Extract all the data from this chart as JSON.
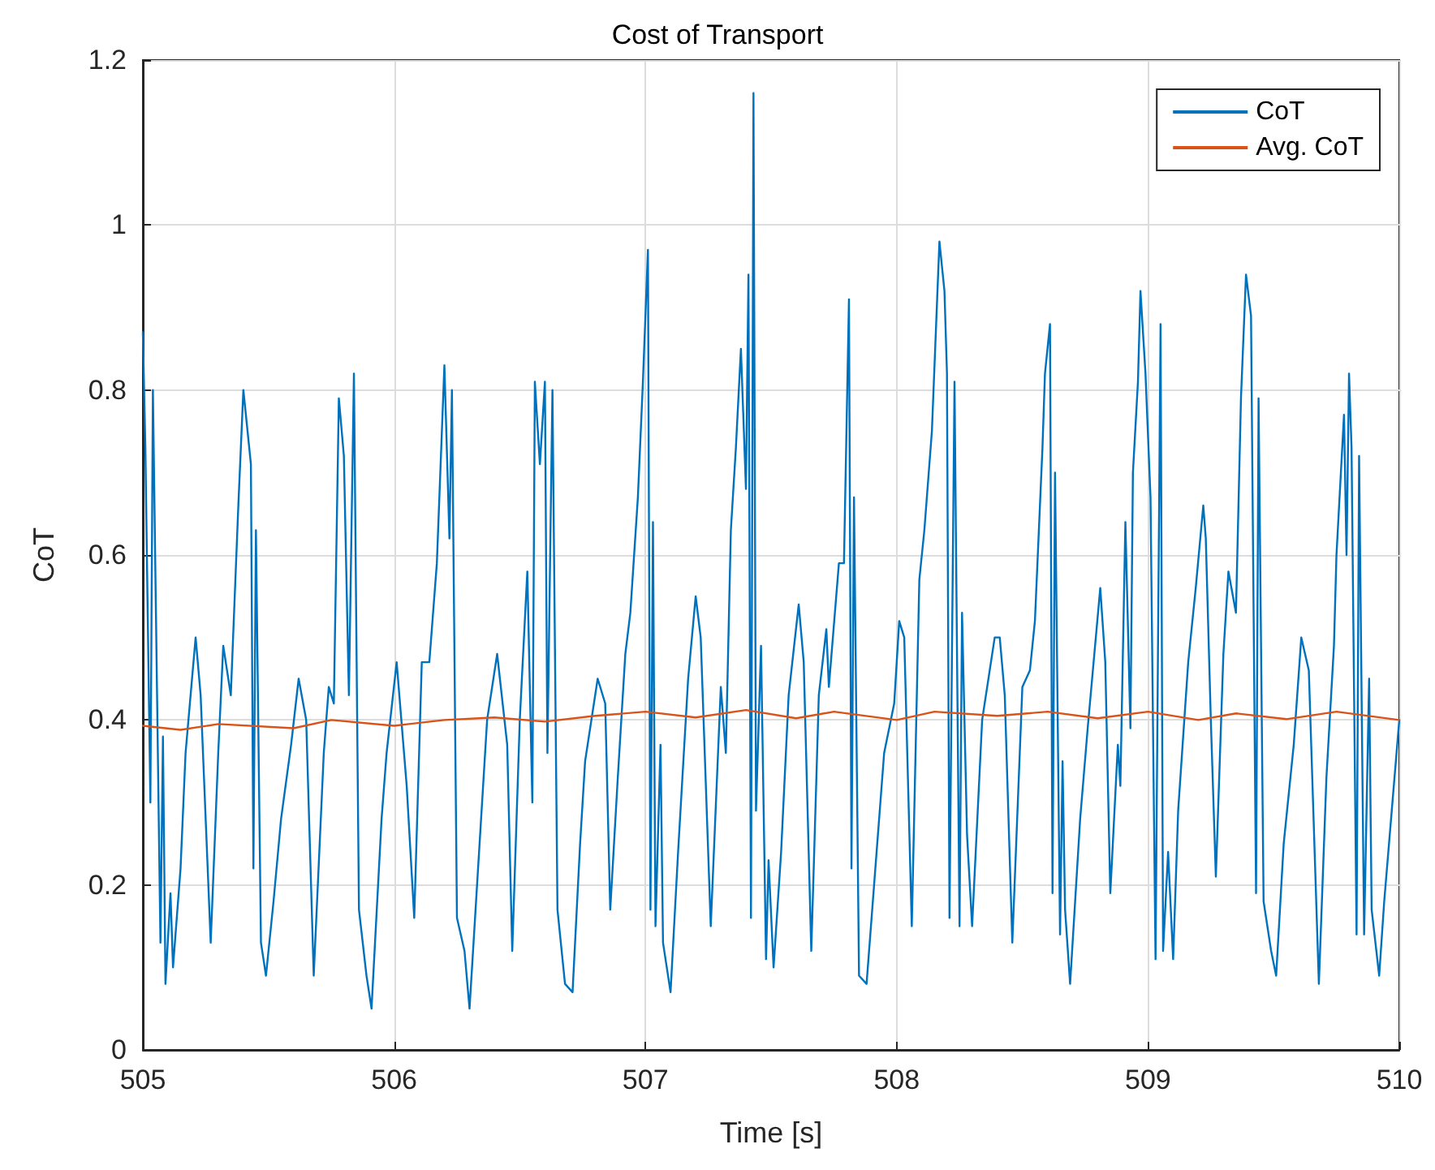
{
  "chart_data": {
    "type": "line",
    "title": "Cost of Transport",
    "xlabel": "Time [s]",
    "ylabel": "CoT",
    "xlim": [
      505,
      510
    ],
    "xticks": [
      505,
      506,
      507,
      508,
      509,
      510
    ],
    "ylim": [
      0,
      1.2
    ],
    "yticks": [
      0,
      0.2,
      0.4,
      0.6,
      0.8,
      1,
      1.2
    ],
    "grid": true,
    "legend": "top right",
    "marker": "none",
    "line_style": "solid",
    "series": [
      {
        "name": "CoT",
        "color": "#0072bd",
        "x": [
          505.0,
          505.01,
          505.03,
          505.04,
          505.07,
          505.08,
          505.09,
          505.11,
          505.12,
          505.15,
          505.17,
          505.21,
          505.23,
          505.27,
          505.3,
          505.32,
          505.35,
          505.38,
          505.4,
          505.43,
          505.44,
          505.45,
          505.47,
          505.49,
          505.52,
          505.55,
          505.59,
          505.62,
          505.65,
          505.68,
          505.72,
          505.74,
          505.76,
          505.78,
          505.8,
          505.82,
          505.84,
          505.86,
          505.89,
          505.91,
          505.95,
          505.97,
          506.01,
          506.05,
          506.08,
          506.11,
          506.14,
          506.17,
          506.2,
          506.22,
          506.23,
          506.25,
          506.28,
          506.3,
          506.33,
          506.37,
          506.41,
          506.45,
          506.47,
          506.5,
          506.53,
          506.55,
          506.56,
          506.58,
          506.6,
          506.61,
          506.63,
          506.65,
          506.68,
          506.71,
          506.74,
          506.76,
          506.81,
          506.84,
          506.86,
          506.89,
          506.92,
          506.94,
          506.97,
          506.99,
          507.01,
          507.02,
          507.03,
          507.04,
          507.06,
          507.07,
          507.1,
          507.13,
          507.17,
          507.2,
          507.22,
          507.26,
          507.3,
          507.32,
          507.34,
          507.36,
          507.38,
          507.4,
          507.41,
          507.42,
          507.43,
          507.44,
          507.46,
          507.48,
          507.49,
          507.51,
          507.54,
          507.57,
          507.61,
          507.63,
          507.66,
          507.69,
          507.72,
          507.73,
          507.77,
          507.79,
          507.81,
          507.82,
          507.83,
          507.85,
          507.88,
          507.91,
          507.95,
          507.99,
          508.01,
          508.03,
          508.06,
          508.09,
          508.11,
          508.14,
          508.17,
          508.19,
          508.2,
          508.21,
          508.23,
          508.25,
          508.26,
          508.28,
          508.3,
          508.34,
          508.37,
          508.39,
          508.41,
          508.43,
          508.46,
          508.5,
          508.53,
          508.55,
          508.58,
          508.59,
          508.61,
          508.62,
          508.63,
          508.65,
          508.66,
          508.67,
          508.69,
          508.73,
          508.76,
          508.81,
          508.83,
          508.85,
          508.88,
          508.89,
          508.91,
          508.93,
          508.94,
          508.96,
          508.97,
          508.99,
          509.01,
          509.03,
          509.05,
          509.06,
          509.08,
          509.1,
          509.12,
          509.16,
          509.19,
          509.22,
          509.23,
          509.25,
          509.27,
          509.3,
          509.32,
          509.35,
          509.37,
          509.39,
          509.41,
          509.43,
          509.44,
          509.46,
          509.49,
          509.51,
          509.54,
          509.58,
          509.61,
          509.64,
          509.68,
          509.71,
          509.74,
          509.75,
          509.78,
          509.79,
          509.8,
          509.81,
          509.83,
          509.84,
          509.86,
          509.88,
          509.89,
          509.92,
          509.94,
          509.97,
          510.0
        ],
        "values": [
          0.87,
          0.73,
          0.3,
          0.8,
          0.13,
          0.38,
          0.08,
          0.19,
          0.1,
          0.22,
          0.36,
          0.5,
          0.43,
          0.13,
          0.36,
          0.49,
          0.43,
          0.66,
          0.8,
          0.71,
          0.22,
          0.63,
          0.13,
          0.09,
          0.18,
          0.28,
          0.37,
          0.45,
          0.4,
          0.09,
          0.36,
          0.44,
          0.42,
          0.79,
          0.72,
          0.43,
          0.82,
          0.17,
          0.09,
          0.05,
          0.28,
          0.36,
          0.47,
          0.32,
          0.16,
          0.47,
          0.47,
          0.59,
          0.83,
          0.62,
          0.8,
          0.16,
          0.12,
          0.05,
          0.2,
          0.4,
          0.48,
          0.37,
          0.12,
          0.4,
          0.58,
          0.3,
          0.81,
          0.71,
          0.81,
          0.36,
          0.8,
          0.17,
          0.08,
          0.07,
          0.25,
          0.35,
          0.45,
          0.42,
          0.17,
          0.33,
          0.48,
          0.53,
          0.67,
          0.81,
          0.97,
          0.17,
          0.64,
          0.15,
          0.37,
          0.13,
          0.07,
          0.24,
          0.45,
          0.55,
          0.5,
          0.15,
          0.44,
          0.36,
          0.63,
          0.73,
          0.85,
          0.68,
          0.94,
          0.16,
          1.16,
          0.29,
          0.49,
          0.11,
          0.23,
          0.1,
          0.24,
          0.43,
          0.54,
          0.47,
          0.12,
          0.43,
          0.51,
          0.44,
          0.59,
          0.59,
          0.91,
          0.22,
          0.67,
          0.09,
          0.08,
          0.2,
          0.36,
          0.42,
          0.52,
          0.5,
          0.15,
          0.57,
          0.63,
          0.75,
          0.98,
          0.92,
          0.82,
          0.16,
          0.81,
          0.15,
          0.53,
          0.26,
          0.15,
          0.4,
          0.46,
          0.5,
          0.5,
          0.43,
          0.13,
          0.44,
          0.46,
          0.52,
          0.73,
          0.82,
          0.88,
          0.19,
          0.7,
          0.14,
          0.35,
          0.17,
          0.08,
          0.28,
          0.39,
          0.56,
          0.47,
          0.19,
          0.37,
          0.32,
          0.64,
          0.39,
          0.7,
          0.81,
          0.92,
          0.82,
          0.67,
          0.11,
          0.88,
          0.12,
          0.24,
          0.11,
          0.29,
          0.47,
          0.56,
          0.66,
          0.62,
          0.4,
          0.21,
          0.48,
          0.58,
          0.53,
          0.79,
          0.94,
          0.89,
          0.19,
          0.79,
          0.18,
          0.12,
          0.09,
          0.25,
          0.37,
          0.5,
          0.46,
          0.08,
          0.33,
          0.49,
          0.6,
          0.77,
          0.6,
          0.82,
          0.73,
          0.14,
          0.72,
          0.14,
          0.45,
          0.17,
          0.09,
          0.18,
          0.29,
          0.4
        ]
      },
      {
        "name": "Avg. CoT",
        "color": "#d95319",
        "x": [
          505.0,
          505.15,
          505.3,
          505.6,
          505.75,
          506.0,
          506.2,
          506.4,
          506.6,
          506.8,
          507.0,
          507.2,
          507.4,
          507.6,
          507.75,
          508.0,
          508.15,
          508.4,
          508.6,
          508.8,
          509.0,
          509.2,
          509.35,
          509.55,
          509.75,
          510.0
        ],
        "values": [
          0.393,
          0.388,
          0.395,
          0.39,
          0.4,
          0.393,
          0.4,
          0.403,
          0.398,
          0.405,
          0.41,
          0.403,
          0.412,
          0.402,
          0.41,
          0.4,
          0.41,
          0.405,
          0.41,
          0.402,
          0.41,
          0.4,
          0.408,
          0.401,
          0.41,
          0.4
        ]
      }
    ]
  }
}
